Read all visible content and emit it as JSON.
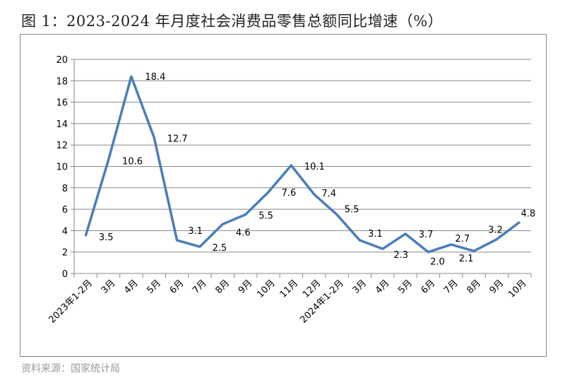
{
  "chart_data": {
    "type": "line",
    "title": "图 1：2023-2024 年月度社会消费品零售总额同比增速（%）",
    "xlabel": "",
    "ylabel": "",
    "ylim": [
      0,
      20
    ],
    "yticks": [
      "0",
      "2",
      "4",
      "6",
      "8",
      "10",
      "12",
      "14",
      "16",
      "18",
      "20"
    ],
    "grid": true,
    "legend": "none",
    "categories": [
      "2023年1-2月",
      "3月",
      "4月",
      "5月",
      "6月",
      "7月",
      "8月",
      "9月",
      "10月",
      "11月",
      "12月",
      "2024年1-2月",
      "3月",
      "4月",
      "5月",
      "6月",
      "7月",
      "8月",
      "9月",
      "10月"
    ],
    "values": [
      3.5,
      10.6,
      18.4,
      12.7,
      3.1,
      2.5,
      4.6,
      5.5,
      7.6,
      10.1,
      7.4,
      5.5,
      3.1,
      2.3,
      3.7,
      2.0,
      2.7,
      2.1,
      3.2,
      4.8
    ],
    "data_labels": [
      "3.5",
      "10.6",
      "18.4",
      "12.7",
      "3.1",
      "2.5",
      "4.6",
      "5.5",
      "7.6",
      "10.1",
      "7.4",
      "5.5",
      "3.1",
      "2.3",
      "3.7",
      "2.0",
      "2.7",
      "2.1",
      "3.2",
      "4.8"
    ],
    "line_color": "#4a7ebb"
  },
  "source": "资料来源：国家统计局"
}
